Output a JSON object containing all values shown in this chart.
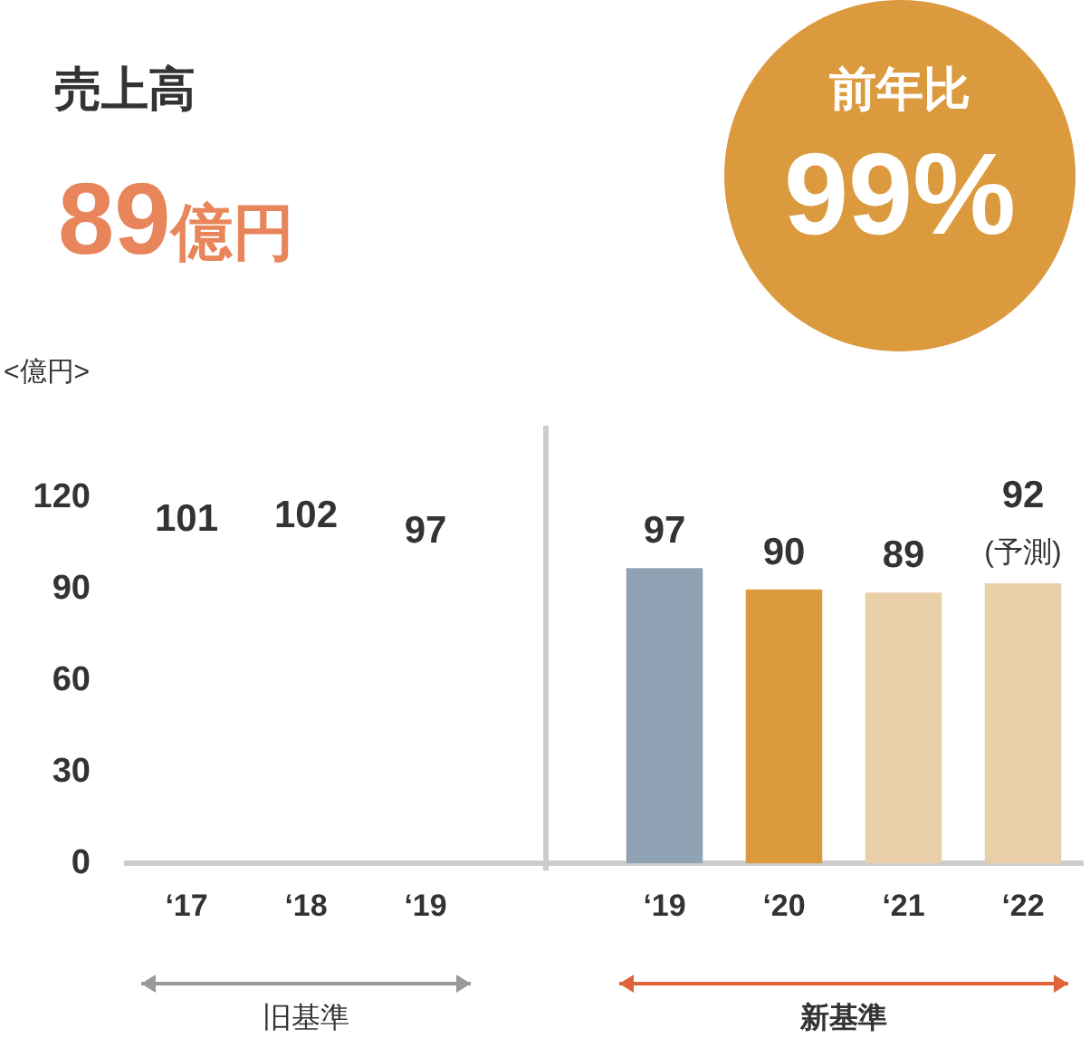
{
  "chart_data": [
    {
      "type": "bar",
      "title": "売上高",
      "subtitle": "89億円",
      "ylabel": "<億円>",
      "categories": [
        "‘17",
        "‘18",
        "‘19",
        null,
        "‘19",
        "‘20",
        "‘21",
        "‘22"
      ],
      "values": [
        null,
        null,
        null,
        null,
        97,
        90,
        89,
        92
      ],
      "value_labels": [
        "101",
        "102",
        "97",
        null,
        "97",
        "90",
        "89",
        "92"
      ],
      "colors": [
        null,
        null,
        null,
        null,
        "#8fa3b5",
        "#dc9a3f",
        "#e8cfa8",
        "#e8cfa8"
      ],
      "ylim": [
        0,
        120
      ],
      "yticks": [
        0,
        30,
        60,
        90,
        120
      ],
      "annotations": [
        {
          "text": "(予測)",
          "x": "‘22",
          "y": 92
        },
        "旧基準",
        "新基準"
      ]
    },
    {
      "type": "other",
      "title": "前年比",
      "annotations": [
        "99%"
      ]
    }
  ]
}
